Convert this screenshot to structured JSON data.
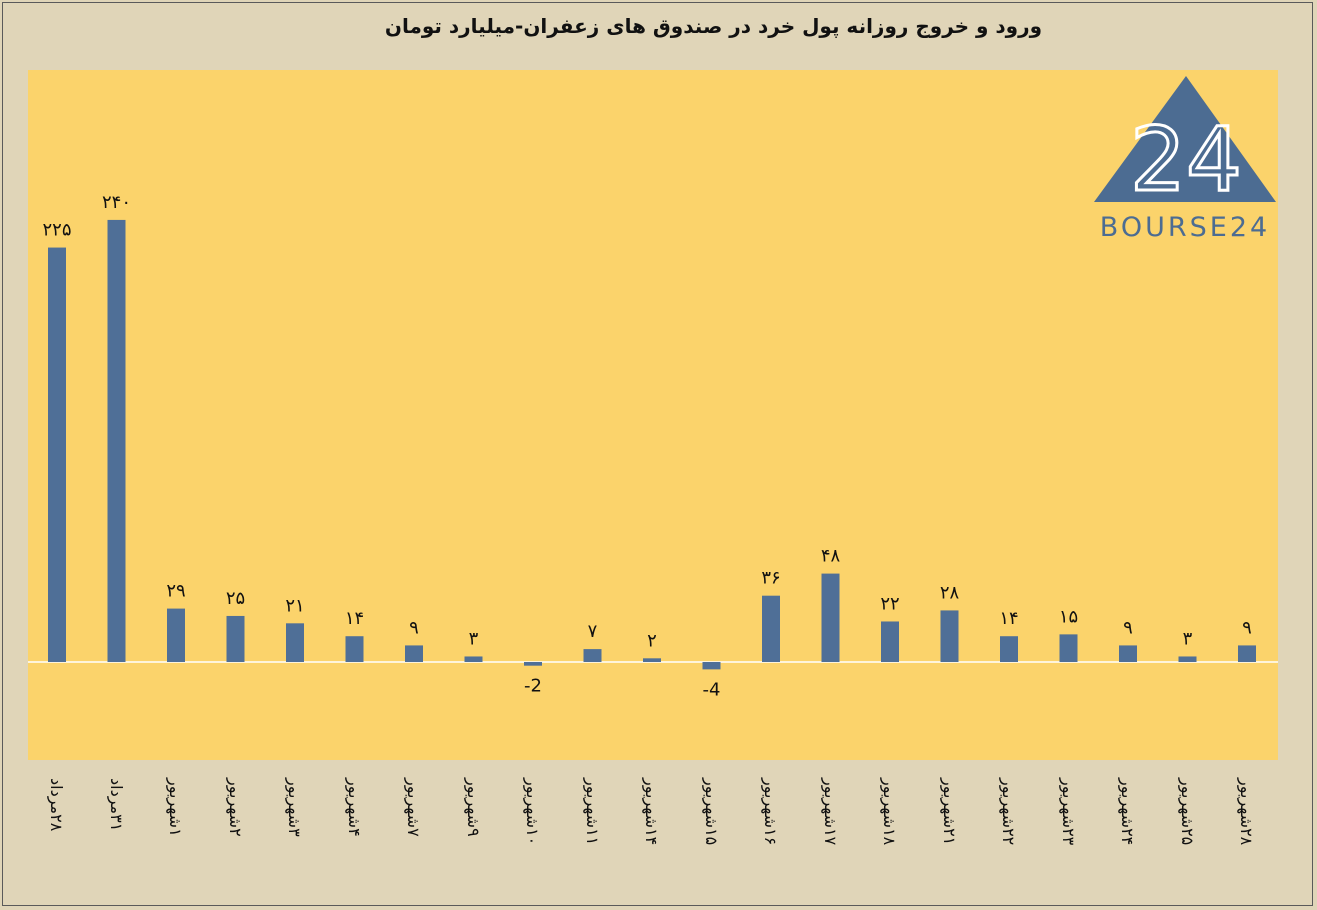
{
  "chart_data": {
    "type": "bar",
    "title": "ورود و خروج روزانه پول خرد در صندوق های زعفران-میلیارد تومان",
    "xlabel": "",
    "ylabel": "",
    "ylim": [
      -40,
      260
    ],
    "grid": false,
    "bar_color": "#4f6f97",
    "plot_background": "#fbd36b",
    "page_background": "#e0d5b8",
    "categories": [
      "۲۸مرداد",
      "۳۱مرداد",
      "۱شهریور",
      "۲شهریور",
      "۳شهریور",
      "۴شهریور",
      "۷شهریور",
      "۹شهریور",
      "۱۰شهریور",
      "۱۱شهریور",
      "۱۴شهریور",
      "۱۵شهریور",
      "۱۶شهریور",
      "۱۷شهریور",
      "۱۸شهریور",
      "۲۱شهریور",
      "۲۲شهریور",
      "۲۳شهریور",
      "۲۴شهریور",
      "۲۵شهریور",
      "۲۸شهریور"
    ],
    "values": [
      225,
      240,
      29,
      25,
      21,
      14,
      9,
      3,
      -2,
      7,
      2,
      -4,
      36,
      48,
      22,
      28,
      14,
      15,
      9,
      3,
      9
    ],
    "data_labels": [
      "۲۲۵",
      "۲۴۰",
      "۲۹",
      "۲۵",
      "۲۱",
      "۱۴",
      "۹",
      "۳",
      "-2",
      "۷",
      "۲",
      "-4",
      "۳۶",
      "۴۸",
      "۲۲",
      "۲۸",
      "۱۴",
      "۱۵",
      "۹",
      "۳",
      "۹"
    ]
  },
  "logo": {
    "text": "BOURSE24",
    "mark": "24",
    "color": "#4c6c92"
  }
}
